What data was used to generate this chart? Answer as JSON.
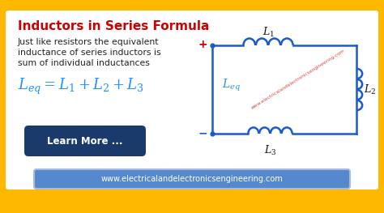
{
  "bg_outer": "#FFB800",
  "bg_inner": "#FFFFFF",
  "title": "Inductors in Series Formula",
  "title_color": "#CC0000",
  "body_text_line1": "Just like resistors the equivalent",
  "body_text_line2": "inductance of series inductors is",
  "body_text_line3": "sum of individual inductances",
  "body_text_color": "#222222",
  "formula": "$L_{eq} = L_1 + L_2 + L_3$",
  "formula_color": "#1E90FF",
  "button_text": "Learn More ...",
  "button_bg": "#1A3A6B",
  "button_text_color": "#FFFFFF",
  "footer_text": "www.electricalandelectronicsengineering.com",
  "footer_bg": "#5588CC",
  "footer_text_color": "#FFFFFF",
  "circuit_color": "#1A5ACA",
  "watermark": "www.electricalandelectronicsengineering.com",
  "watermark_color": "#CC3333",
  "leq_color": "#1E90FF",
  "plus_color": "#CC0000",
  "minus_color": "#1A5ACA"
}
